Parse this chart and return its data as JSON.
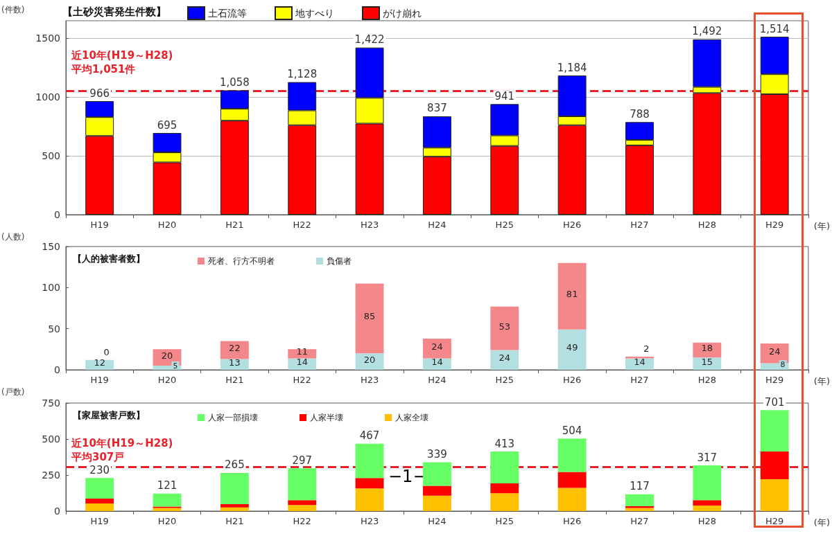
{
  "chart_data": [
    {
      "type": "bar",
      "title": "【土砂災害発生件数】",
      "ylabel": "(件数)",
      "xlabel": "(年)",
      "stacked": true,
      "categories": [
        "H19",
        "H20",
        "H21",
        "H22",
        "H23",
        "H24",
        "H25",
        "H26",
        "H27",
        "H28",
        "H29"
      ],
      "series": [
        {
          "name": "がけ崩れ",
          "color": "#ff0000",
          "values": [
            670,
            445,
            800,
            762,
            775,
            494,
            585,
            762,
            590,
            1035,
            1025
          ]
        },
        {
          "name": "地すべり",
          "color": "#ffff00",
          "values": [
            160,
            85,
            102,
            125,
            219,
            76,
            89,
            75,
            46,
            52,
            170
          ]
        },
        {
          "name": "土石流等",
          "color": "#0000ff",
          "values": [
            136,
            165,
            156,
            241,
            428,
            267,
            267,
            347,
            152,
            405,
            319
          ]
        }
      ],
      "totals": [
        "966",
        "695",
        "1,058",
        "1,128",
        "1,422",
        "837",
        "941",
        "1,184",
        "788",
        "1,492",
        "1,514"
      ],
      "ylim": [
        0,
        1650
      ],
      "yticks": [
        0,
        500,
        1000,
        1500
      ],
      "grid": "y",
      "legend": "top",
      "ref_lines": [
        {
          "axis": "y",
          "value": 1051,
          "label": "近10年(H19～H28)\n平均1,051件",
          "color": "#e8212b",
          "line_style": "dashed"
        }
      ]
    },
    {
      "type": "bar",
      "title": "【人的被害者数】",
      "ylabel": "(人数)",
      "xlabel": "(年)",
      "stacked": true,
      "categories": [
        "H19",
        "H20",
        "H21",
        "H22",
        "H23",
        "H24",
        "H25",
        "H26",
        "H27",
        "H28",
        "H29"
      ],
      "series": [
        {
          "name": "負傷者",
          "color": "#b3dfe0",
          "values": [
            12,
            5,
            13,
            14,
            20,
            14,
            24,
            49,
            14,
            15,
            8
          ]
        },
        {
          "name": "死者、行方不明者",
          "color": "#f4878a",
          "values": [
            0,
            20,
            22,
            11,
            85,
            24,
            53,
            81,
            2,
            18,
            24
          ]
        }
      ],
      "ylim": [
        0,
        150
      ],
      "yticks": [
        0,
        50,
        100,
        150
      ],
      "data_labels": true,
      "legend": "top"
    },
    {
      "type": "bar",
      "title": "【家屋被害戸数】",
      "ylabel": "(戸数)",
      "xlabel": "(年)",
      "stacked": true,
      "categories": [
        "H19",
        "H20",
        "H21",
        "H22",
        "H23",
        "H24",
        "H25",
        "H26",
        "H27",
        "H28",
        "H29"
      ],
      "series": [
        {
          "name": "人家全壊",
          "color": "#ffc000",
          "values": [
            53,
            22,
            25,
            42,
            158,
            107,
            124,
            161,
            22,
            39,
            221
          ]
        },
        {
          "name": "人家半壊",
          "color": "#ff0000",
          "values": [
            34,
            9,
            23,
            34,
            71,
            68,
            68,
            111,
            12,
            37,
            192
          ]
        },
        {
          "name": "人家一部損壊",
          "color": "#66ff66",
          "values": [
            143,
            90,
            217,
            221,
            238,
            164,
            221,
            232,
            83,
            241,
            288
          ]
        }
      ],
      "totals": [
        "230",
        "121",
        "265",
        "297",
        "467",
        "339",
        "413",
        "504",
        "117",
        "317",
        "701"
      ],
      "ylim": [
        0,
        750
      ],
      "yticks": [
        0,
        250,
        500,
        750
      ],
      "legend": "top",
      "ref_lines": [
        {
          "axis": "y",
          "value": 307,
          "label": "近10年(H19～H28)\n平均307戸",
          "color": "#e8212b",
          "line_style": "dashed"
        }
      ],
      "annotations": [
        "−1−"
      ]
    }
  ]
}
